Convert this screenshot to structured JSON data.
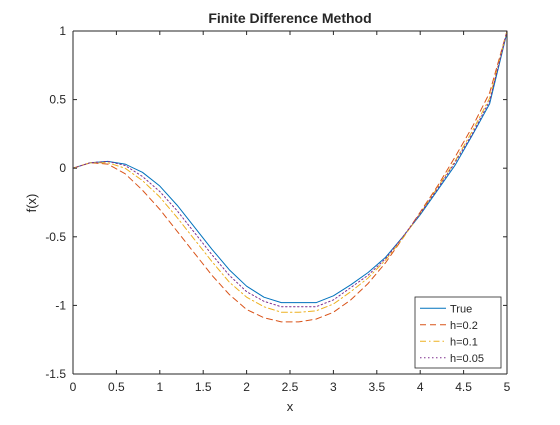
{
  "chart_data": {
    "type": "line",
    "title": "Finite Difference Method",
    "xlabel": "x",
    "ylabel": "f(x)",
    "xlim": [
      0,
      5
    ],
    "ylim": [
      -1.5,
      1
    ],
    "xticks": [
      "0",
      "0.5",
      "1",
      "1.5",
      "2",
      "2.5",
      "3",
      "3.5",
      "4",
      "4.5",
      "5"
    ],
    "yticks": [
      "1",
      "0.5",
      "0",
      "-0.5",
      "-1",
      "-1.5"
    ],
    "grid": false,
    "legend_position": "bottom-right",
    "series": [
      {
        "name": "True",
        "color": "#0072BD",
        "style": "solid",
        "x": [
          0,
          0.2,
          0.4,
          0.6,
          0.8,
          1.0,
          1.2,
          1.4,
          1.6,
          1.8,
          2.0,
          2.2,
          2.4,
          2.6,
          2.8,
          3.0,
          3.2,
          3.4,
          3.6,
          3.8,
          4.0,
          4.2,
          4.4,
          4.6,
          4.8,
          5.0
        ],
        "y": [
          0,
          0.04,
          0.05,
          0.03,
          -0.03,
          -0.13,
          -0.27,
          -0.43,
          -0.59,
          -0.74,
          -0.86,
          -0.94,
          -0.98,
          -0.98,
          -0.98,
          -0.93,
          -0.85,
          -0.76,
          -0.65,
          -0.5,
          -0.34,
          -0.16,
          0.02,
          0.24,
          0.47,
          0.99
        ]
      },
      {
        "name": "h=0.2",
        "color": "#D95319",
        "style": "dashed",
        "x": [
          0,
          0.2,
          0.4,
          0.6,
          0.8,
          1.0,
          1.2,
          1.4,
          1.6,
          1.8,
          2.0,
          2.2,
          2.4,
          2.6,
          2.8,
          3.0,
          3.2,
          3.4,
          3.6,
          3.8,
          4.0,
          4.2,
          4.4,
          4.6,
          4.8,
          5.0
        ],
        "y": [
          0,
          0.04,
          0.03,
          -0.04,
          -0.16,
          -0.3,
          -0.46,
          -0.62,
          -0.78,
          -0.92,
          -1.03,
          -1.09,
          -1.12,
          -1.12,
          -1.1,
          -1.05,
          -0.96,
          -0.84,
          -0.69,
          -0.51,
          -0.32,
          -0.13,
          0.08,
          0.3,
          0.55,
          1.0
        ]
      },
      {
        "name": "h=0.1",
        "color": "#EDB120",
        "style": "dashdot",
        "x": [
          0,
          0.2,
          0.4,
          0.6,
          0.8,
          1.0,
          1.2,
          1.4,
          1.6,
          1.8,
          2.0,
          2.2,
          2.4,
          2.6,
          2.8,
          3.0,
          3.2,
          3.4,
          3.6,
          3.8,
          4.0,
          4.2,
          4.4,
          4.6,
          4.8,
          5.0
        ],
        "y": [
          0,
          0.04,
          0.04,
          0.0,
          -0.09,
          -0.21,
          -0.36,
          -0.52,
          -0.68,
          -0.83,
          -0.94,
          -1.01,
          -1.05,
          -1.05,
          -1.04,
          -0.99,
          -0.9,
          -0.8,
          -0.67,
          -0.51,
          -0.33,
          -0.14,
          0.05,
          0.27,
          0.51,
          1.0
        ]
      },
      {
        "name": "h=0.05",
        "color": "#7E2F8E",
        "style": "dotted",
        "x": [
          0,
          0.2,
          0.4,
          0.6,
          0.8,
          1.0,
          1.2,
          1.4,
          1.6,
          1.8,
          2.0,
          2.2,
          2.4,
          2.6,
          2.8,
          3.0,
          3.2,
          3.4,
          3.6,
          3.8,
          4.0,
          4.2,
          4.4,
          4.6,
          4.8,
          5.0
        ],
        "y": [
          0,
          0.04,
          0.05,
          0.02,
          -0.06,
          -0.17,
          -0.31,
          -0.47,
          -0.63,
          -0.78,
          -0.9,
          -0.97,
          -1.01,
          -1.01,
          -1.01,
          -0.96,
          -0.87,
          -0.78,
          -0.66,
          -0.5,
          -0.33,
          -0.15,
          0.04,
          0.25,
          0.49,
          1.0
        ]
      }
    ]
  }
}
